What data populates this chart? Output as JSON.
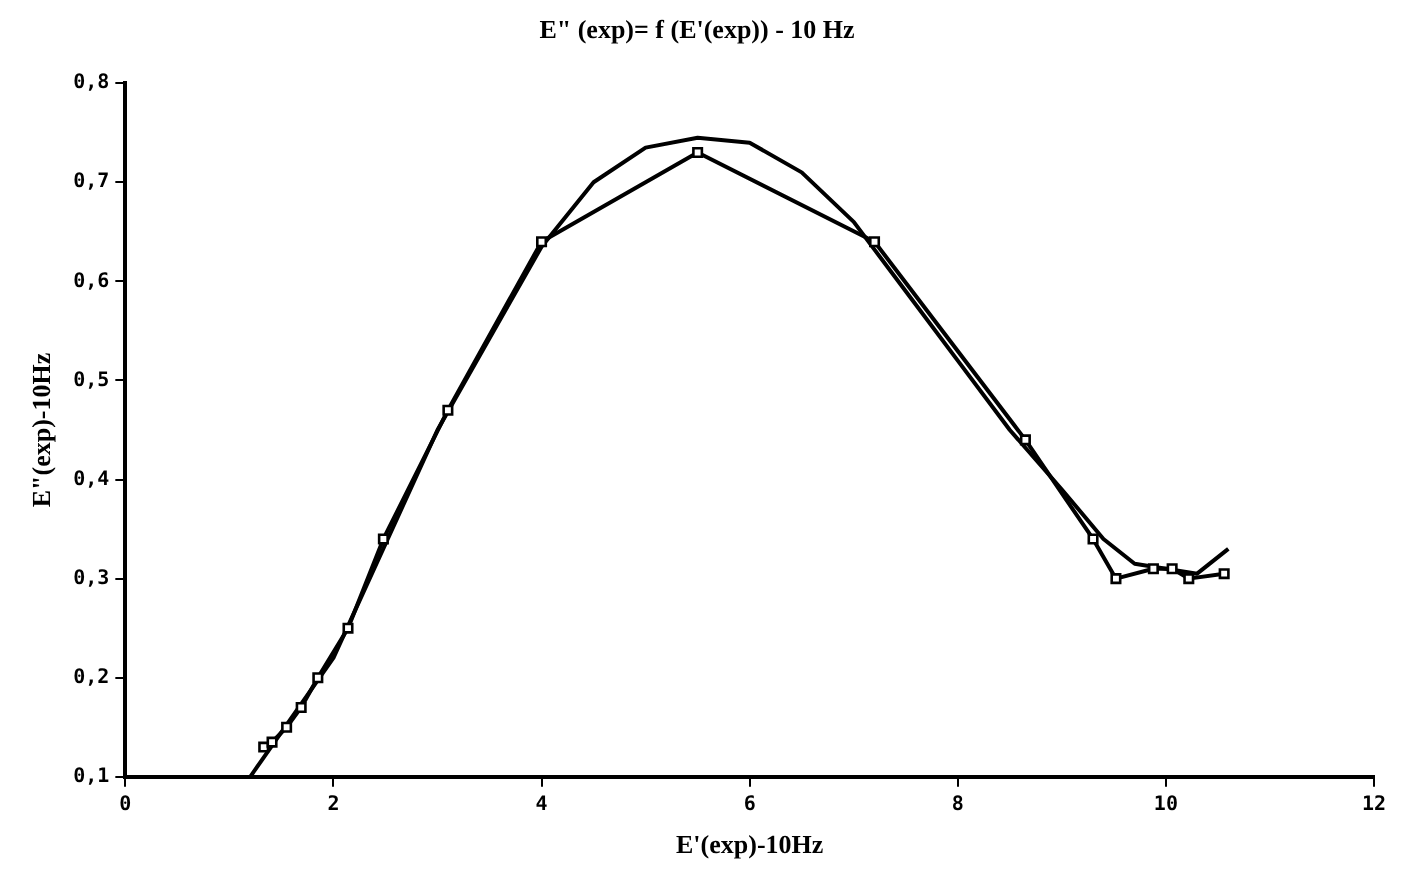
{
  "chart_data": {
    "type": "line",
    "title": "E\" (exp)= f (E'(exp)) - 10 Hz",
    "xlabel": "E'(exp)-10Hz",
    "ylabel": "E\"(exp)-10Hz",
    "xlim": [
      0,
      12
    ],
    "xticks": [
      0,
      2,
      4,
      6,
      8,
      10,
      12
    ],
    "ylim": [
      0.1,
      0.8
    ],
    "yticks": [
      {
        "value": 0.1,
        "label": "0,1"
      },
      {
        "value": 0.2,
        "label": "0,2"
      },
      {
        "value": 0.3,
        "label": "0,3"
      },
      {
        "value": 0.4,
        "label": "0,4"
      },
      {
        "value": 0.5,
        "label": "0,5"
      },
      {
        "value": 0.6,
        "label": "0,6"
      },
      {
        "value": 0.7,
        "label": "0,7"
      },
      {
        "value": 0.8,
        "label": "0,8"
      }
    ],
    "grid": false,
    "legend": false,
    "series": [
      {
        "color": "#000000",
        "marker": "square",
        "x": [
          1.33,
          1.41,
          1.55,
          1.69,
          1.85,
          2.14,
          2.48,
          3.1,
          4.0,
          5.5,
          7.2,
          8.65,
          9.3,
          9.52,
          9.88,
          10.06,
          10.22,
          10.56
        ],
        "values": [
          0.13,
          0.135,
          0.15,
          0.17,
          0.2,
          0.25,
          0.34,
          0.47,
          0.64,
          0.73,
          0.64,
          0.44,
          0.34,
          0.3,
          0.31,
          0.31,
          0.3,
          0.305
        ]
      },
      {
        "color": "#000000",
        "marker": "none",
        "x": [
          1.2,
          2,
          3,
          4,
          4.5,
          5,
          5.5,
          6,
          6.5,
          7,
          7.5,
          8,
          8.5,
          9,
          9.4,
          9.7,
          10,
          10.3,
          10.6
        ],
        "values": [
          0.1,
          0.22,
          0.45,
          0.635,
          0.7,
          0.735,
          0.745,
          0.74,
          0.71,
          0.66,
          0.59,
          0.52,
          0.45,
          0.39,
          0.34,
          0.315,
          0.31,
          0.305,
          0.33
        ]
      }
    ]
  }
}
